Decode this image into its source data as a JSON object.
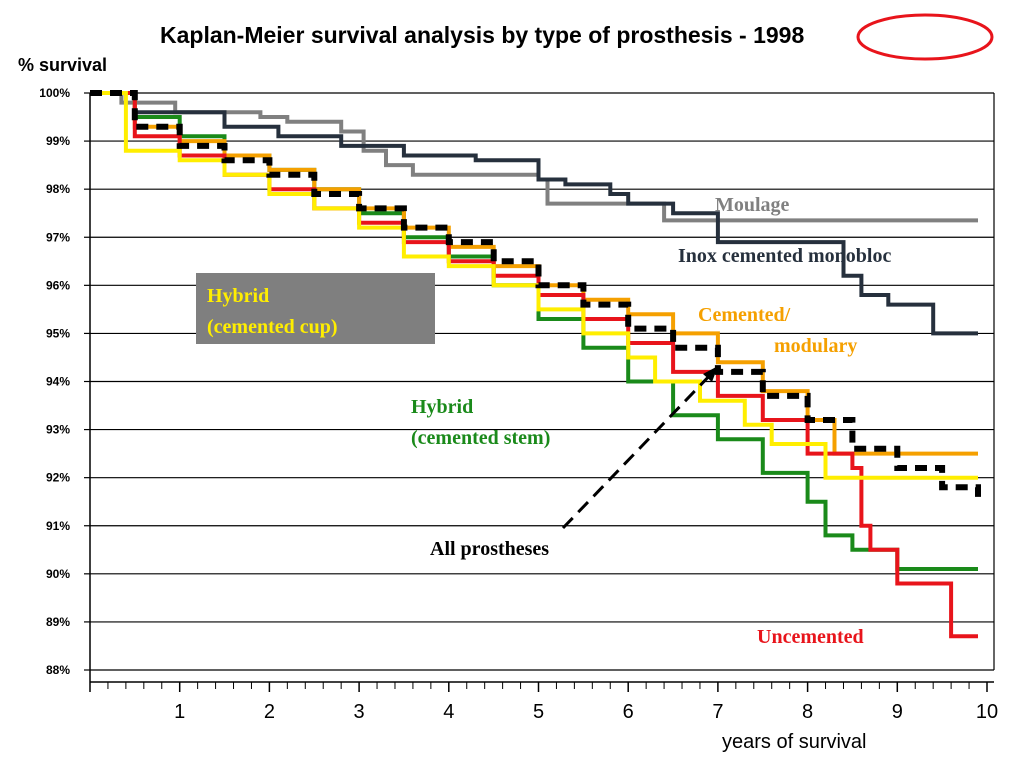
{
  "chart_data": {
    "type": "line",
    "title": "Kaplan-Meier survival analysis by type of prosthesis - 1998",
    "ylabel": "% survival",
    "xlabel": "years of survival",
    "xlim": [
      0,
      10
    ],
    "ylim": [
      88,
      100
    ],
    "x_ticks": [
      "1",
      "2",
      "3",
      "4",
      "5",
      "6",
      "7",
      "8",
      "9",
      "10"
    ],
    "y_ticks": [
      "100%",
      "99%",
      "98%",
      "97%",
      "96%",
      "95%",
      "94%",
      "93%",
      "92%",
      "91%",
      "90%",
      "89%",
      "88%"
    ],
    "grid": "horizontal",
    "colors": {
      "moulage": "#808080",
      "inox": "#26303d",
      "cemented_modulary": "#f5a000",
      "all": "#000000",
      "uncemented": "#e8141b",
      "hybrid_cup": "#ffee00",
      "hybrid_stem": "#1a8a1a",
      "highlight_circle": "#e8141b",
      "label_box": "#7f7f7f"
    },
    "series": [
      {
        "name": "Moulage",
        "key": "moulage",
        "x": [
          0,
          0.35,
          0.95,
          1.9,
          2.2,
          2.8,
          3.05,
          3.3,
          3.6,
          4.2,
          5.0,
          5.1,
          6.0,
          6.4,
          9.9
        ],
        "y": [
          100,
          99.8,
          99.6,
          99.5,
          99.4,
          99.2,
          98.8,
          98.5,
          98.3,
          98.3,
          98.2,
          97.7,
          97.7,
          97.35,
          97.35
        ]
      },
      {
        "name": "Inox cemented  monobloc",
        "key": "inox",
        "x": [
          0,
          0.5,
          1.5,
          2.1,
          2.8,
          3.5,
          4.3,
          5.0,
          5.3,
          5.8,
          6.0,
          6.5,
          7.0,
          8.3,
          8.4,
          8.6,
          8.9,
          9.4,
          9.9
        ],
        "y": [
          100,
          99.6,
          99.3,
          99.1,
          98.9,
          98.7,
          98.6,
          98.2,
          98.1,
          97.9,
          97.7,
          97.5,
          96.9,
          96.9,
          96.2,
          95.8,
          95.6,
          95.0,
          95.0
        ]
      },
      {
        "name": "Cemented/ modulary",
        "key": "cemented_modulary",
        "x": [
          0,
          0.5,
          1.0,
          1.5,
          2.0,
          2.5,
          3.0,
          3.5,
          4.0,
          4.5,
          5.0,
          5.5,
          6.0,
          6.5,
          7.0,
          7.5,
          8.0,
          8.3,
          8.5,
          9.9
        ],
        "y": [
          100,
          99.3,
          99.0,
          98.7,
          98.4,
          98.0,
          97.6,
          97.2,
          96.8,
          96.4,
          96.0,
          95.7,
          95.4,
          95.0,
          94.4,
          93.8,
          93.2,
          92.5,
          92.5,
          92.5
        ]
      },
      {
        "name": "All prostheses",
        "key": "all",
        "x": [
          0,
          0.5,
          1.0,
          1.5,
          2.0,
          2.5,
          3.0,
          3.5,
          4.0,
          4.5,
          5.0,
          5.5,
          6.0,
          6.5,
          7.0,
          7.5,
          8.0,
          8.5,
          9.0,
          9.5,
          9.9
        ],
        "y": [
          100,
          99.3,
          98.9,
          98.6,
          98.3,
          97.9,
          97.6,
          97.2,
          96.9,
          96.5,
          96.0,
          95.6,
          95.1,
          94.7,
          94.2,
          93.7,
          93.2,
          92.6,
          92.2,
          91.8,
          91.6
        ]
      },
      {
        "name": "Uncemented",
        "key": "uncemented",
        "x": [
          0,
          0.5,
          1.0,
          1.5,
          2.0,
          2.5,
          3.0,
          3.5,
          4.0,
          4.5,
          5.0,
          5.5,
          6.0,
          6.5,
          7.0,
          7.5,
          8.0,
          8.5,
          8.6,
          8.7,
          9.0,
          9.5,
          9.6,
          9.9
        ],
        "y": [
          100,
          99.1,
          98.7,
          98.3,
          98.0,
          97.6,
          97.3,
          96.9,
          96.5,
          96.2,
          95.8,
          95.3,
          94.8,
          94.2,
          93.7,
          93.2,
          92.5,
          92.2,
          91.0,
          90.5,
          89.8,
          89.8,
          88.7,
          88.7
        ]
      },
      {
        "name": "Hybrid (cemented cup)",
        "key": "hybrid_cup",
        "x": [
          0,
          0.4,
          1.0,
          1.5,
          2.0,
          2.5,
          3.0,
          3.5,
          4.0,
          4.5,
          5.0,
          5.5,
          6.0,
          6.3,
          6.8,
          7.3,
          7.6,
          8.2,
          8.8,
          9.9
        ],
        "y": [
          100,
          98.8,
          98.6,
          98.3,
          97.9,
          97.6,
          97.2,
          96.6,
          96.4,
          96.0,
          95.5,
          95.0,
          94.5,
          94.0,
          93.6,
          93.1,
          92.7,
          92.0,
          92.0,
          92.0
        ]
      },
      {
        "name": "Hybrid (cemented stem)",
        "key": "hybrid_stem",
        "x": [
          0,
          0.5,
          1.0,
          1.5,
          2.0,
          2.5,
          3.0,
          3.5,
          4.0,
          4.5,
          5.0,
          5.5,
          6.0,
          6.5,
          7.0,
          7.5,
          8.0,
          8.2,
          8.5,
          9.0,
          9.9
        ],
        "y": [
          100,
          99.5,
          99.1,
          98.7,
          98.4,
          98.0,
          97.5,
          97.0,
          96.6,
          96.0,
          95.3,
          94.7,
          94.0,
          93.3,
          92.8,
          92.1,
          91.5,
          90.8,
          90.5,
          90.1,
          90.1
        ]
      }
    ],
    "annotations": [
      {
        "key": "moulage",
        "lines": [
          "Moulage"
        ]
      },
      {
        "key": "inox",
        "lines": [
          "Inox cemented   monobloc"
        ]
      },
      {
        "key": "cemented_modulary",
        "lines": [
          "Cemented/",
          "modulary"
        ]
      },
      {
        "key": "hybrid_cup",
        "lines": [
          "Hybrid",
          "(cemented cup)"
        ]
      },
      {
        "key": "hybrid_stem",
        "lines": [
          "Hybrid",
          "(cemented stem)"
        ]
      },
      {
        "key": "all",
        "lines": [
          "All prostheses"
        ]
      },
      {
        "key": "uncemented",
        "lines": [
          "Uncemented"
        ]
      }
    ]
  }
}
